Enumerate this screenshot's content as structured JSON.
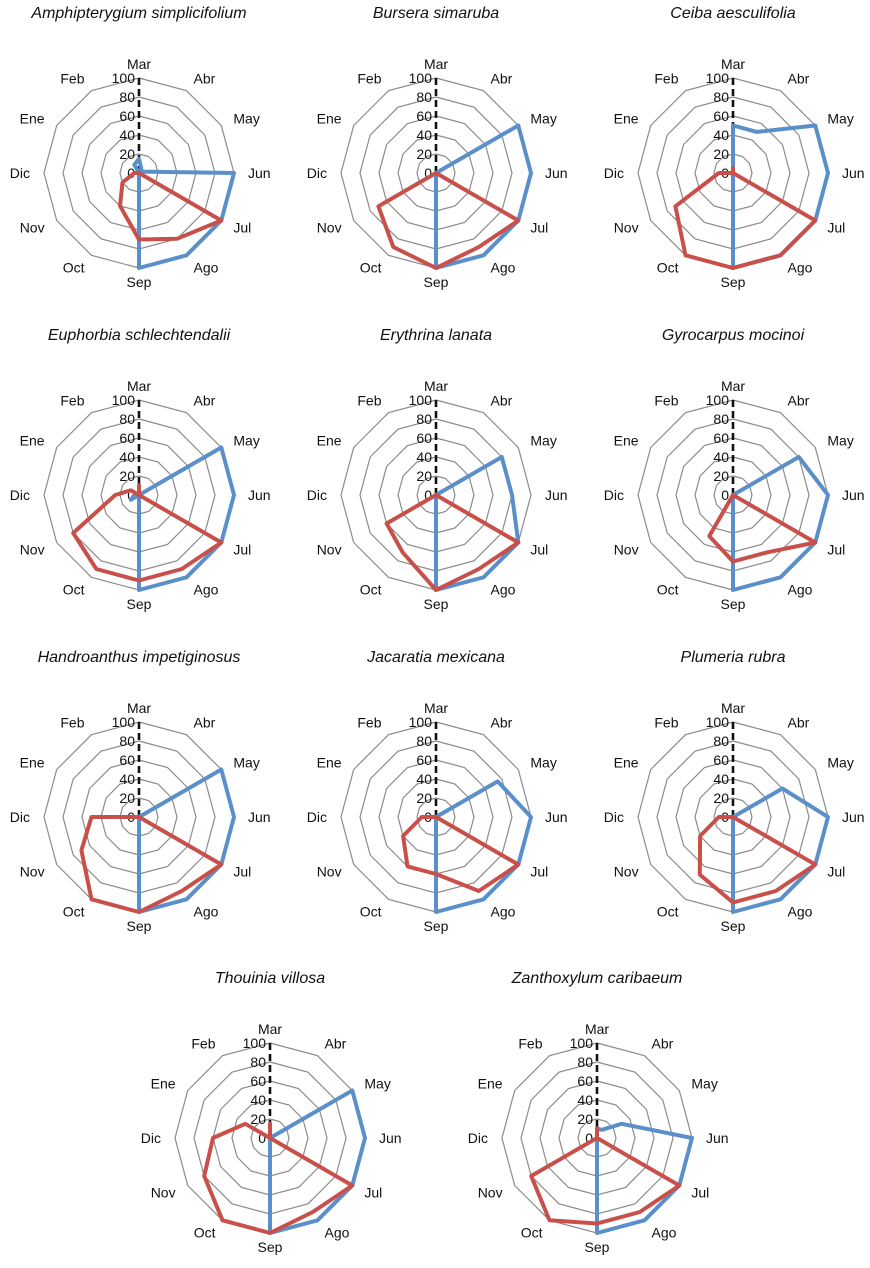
{
  "colors": {
    "series_a": "#5b8fc9",
    "series_b": "#c9504a",
    "grid": "#8a8a8a"
  },
  "chart_data": [
    {
      "type": "radar",
      "title": "Amphipterygium simplicifolium",
      "categories": [
        "Mar",
        "Abr",
        "May",
        "Jun",
        "Jul",
        "Ago",
        "Sep",
        "Oct",
        "Nov",
        "Dic",
        "Ene",
        "Feb"
      ],
      "ticks": [
        "0",
        "20",
        "40",
        "60",
        "80",
        "100"
      ],
      "rlim": [
        0,
        100
      ],
      "series": [
        {
          "color": "#5b8fc9",
          "values": [
            15,
            5,
            3,
            100,
            100,
            100,
            100,
            0,
            0,
            0,
            0,
            10
          ]
        },
        {
          "color": "#c9504a",
          "values": [
            0,
            0,
            0,
            0,
            100,
            80,
            70,
            40,
            20,
            5,
            0,
            0
          ]
        }
      ]
    },
    {
      "type": "radar",
      "title": "Bursera simaruba",
      "categories": [
        "Mar",
        "Abr",
        "May",
        "Jun",
        "Jul",
        "Ago",
        "Sep",
        "Oct",
        "Nov",
        "Dic",
        "Ene",
        "Feb"
      ],
      "ticks": [
        "0",
        "20",
        "40",
        "60",
        "80",
        "100"
      ],
      "rlim": [
        0,
        100
      ],
      "series": [
        {
          "color": "#5b8fc9",
          "values": [
            0,
            0,
            100,
            100,
            100,
            100,
            100,
            0,
            0,
            0,
            0,
            0
          ]
        },
        {
          "color": "#c9504a",
          "values": [
            0,
            0,
            0,
            0,
            100,
            90,
            100,
            90,
            70,
            0,
            0,
            0
          ]
        }
      ]
    },
    {
      "type": "radar",
      "title": "Ceiba aesculifolia",
      "categories": [
        "Mar",
        "Abr",
        "May",
        "Jun",
        "Jul",
        "Ago",
        "Sep",
        "Oct",
        "Nov",
        "Dic",
        "Ene",
        "Feb"
      ],
      "ticks": [
        "0",
        "20",
        "40",
        "60",
        "80",
        "100"
      ],
      "rlim": [
        0,
        100
      ],
      "series": [
        {
          "color": "#5b8fc9",
          "values": [
            50,
            50,
            100,
            100,
            100,
            100,
            100,
            0,
            0,
            0,
            0,
            0
          ]
        },
        {
          "color": "#c9504a",
          "values": [
            5,
            0,
            0,
            0,
            100,
            100,
            100,
            100,
            70,
            15,
            0,
            0
          ]
        }
      ]
    },
    {
      "type": "radar",
      "title": "Euphorbia schlechtendalii",
      "categories": [
        "Mar",
        "Abr",
        "May",
        "Jun",
        "Jul",
        "Ago",
        "Sep",
        "Oct",
        "Nov",
        "Dic",
        "Ene",
        "Feb"
      ],
      "ticks": [
        "0",
        "20",
        "40",
        "60",
        "80",
        "100"
      ],
      "rlim": [
        0,
        100
      ],
      "series": [
        {
          "color": "#5b8fc9",
          "values": [
            10,
            0,
            100,
            100,
            100,
            100,
            100,
            0,
            10,
            5,
            0,
            0
          ]
        },
        {
          "color": "#c9504a",
          "values": [
            10,
            0,
            0,
            0,
            100,
            90,
            90,
            90,
            80,
            25,
            10,
            0
          ]
        }
      ]
    },
    {
      "type": "radar",
      "title": "Erythrina lanata",
      "categories": [
        "Mar",
        "Abr",
        "May",
        "Jun",
        "Jul",
        "Ago",
        "Sep",
        "Oct",
        "Nov",
        "Dic",
        "Ene",
        "Feb"
      ],
      "ticks": [
        "0",
        "20",
        "40",
        "60",
        "80",
        "100"
      ],
      "rlim": [
        0,
        100
      ],
      "series": [
        {
          "color": "#5b8fc9",
          "values": [
            0,
            0,
            80,
            80,
            100,
            100,
            100,
            0,
            0,
            0,
            0,
            0
          ]
        },
        {
          "color": "#c9504a",
          "values": [
            0,
            0,
            0,
            0,
            100,
            90,
            100,
            70,
            60,
            0,
            0,
            0
          ]
        }
      ]
    },
    {
      "type": "radar",
      "title": "Gyrocarpus mocinoi",
      "categories": [
        "Mar",
        "Abr",
        "May",
        "Jun",
        "Jul",
        "Ago",
        "Sep",
        "Oct",
        "Nov",
        "Dic",
        "Ene",
        "Feb"
      ],
      "ticks": [
        "0",
        "20",
        "40",
        "60",
        "80",
        "100"
      ],
      "rlim": [
        0,
        100
      ],
      "series": [
        {
          "color": "#5b8fc9",
          "values": [
            0,
            0,
            80,
            100,
            100,
            100,
            100,
            0,
            0,
            0,
            0,
            0
          ]
        },
        {
          "color": "#c9504a",
          "values": [
            0,
            0,
            0,
            0,
            100,
            70,
            70,
            50,
            0,
            0,
            0,
            0
          ]
        }
      ]
    },
    {
      "type": "radar",
      "title": "Handroanthus impetiginosus",
      "categories": [
        "Mar",
        "Abr",
        "May",
        "Jun",
        "Jul",
        "Ago",
        "Sep",
        "Oct",
        "Nov",
        "Dic",
        "Ene",
        "Feb"
      ],
      "ticks": [
        "0",
        "20",
        "40",
        "60",
        "80",
        "100"
      ],
      "rlim": [
        0,
        100
      ],
      "series": [
        {
          "color": "#5b8fc9",
          "values": [
            0,
            0,
            100,
            100,
            100,
            100,
            100,
            0,
            0,
            0,
            0,
            0
          ]
        },
        {
          "color": "#c9504a",
          "values": [
            0,
            0,
            0,
            0,
            100,
            90,
            100,
            100,
            70,
            50,
            0,
            0
          ]
        }
      ]
    },
    {
      "type": "radar",
      "title": "Jacaratia mexicana",
      "categories": [
        "Mar",
        "Abr",
        "May",
        "Jun",
        "Jul",
        "Ago",
        "Sep",
        "Oct",
        "Nov",
        "Dic",
        "Ene",
        "Feb"
      ],
      "ticks": [
        "0",
        "20",
        "40",
        "60",
        "80",
        "100"
      ],
      "rlim": [
        0,
        100
      ],
      "series": [
        {
          "color": "#5b8fc9",
          "values": [
            0,
            0,
            75,
            100,
            100,
            100,
            100,
            0,
            0,
            0,
            0,
            0
          ]
        },
        {
          "color": "#c9504a",
          "values": [
            0,
            0,
            0,
            0,
            100,
            90,
            60,
            60,
            40,
            15,
            0,
            0
          ]
        }
      ]
    },
    {
      "type": "radar",
      "title": "Plumeria rubra",
      "categories": [
        "Mar",
        "Abr",
        "May",
        "Jun",
        "Jul",
        "Ago",
        "Sep",
        "Oct",
        "Nov",
        "Dic",
        "Ene",
        "Feb"
      ],
      "ticks": [
        "0",
        "20",
        "40",
        "60",
        "80",
        "100"
      ],
      "rlim": [
        0,
        100
      ],
      "series": [
        {
          "color": "#5b8fc9",
          "values": [
            0,
            0,
            60,
            100,
            100,
            100,
            100,
            0,
            0,
            0,
            0,
            0
          ]
        },
        {
          "color": "#c9504a",
          "values": [
            0,
            0,
            0,
            0,
            100,
            90,
            90,
            70,
            40,
            15,
            0,
            0
          ]
        }
      ]
    },
    {
      "type": "radar",
      "title": "Thouinia villosa",
      "categories": [
        "Mar",
        "Abr",
        "May",
        "Jun",
        "Jul",
        "Ago",
        "Sep",
        "Oct",
        "Nov",
        "Dic",
        "Ene",
        "Feb"
      ],
      "ticks": [
        "0",
        "20",
        "40",
        "60",
        "80",
        "100"
      ],
      "rlim": [
        0,
        100
      ],
      "series": [
        {
          "color": "#5b8fc9",
          "values": [
            15,
            0,
            100,
            100,
            100,
            100,
            100,
            0,
            0,
            0,
            0,
            0
          ]
        },
        {
          "color": "#c9504a",
          "values": [
            15,
            0,
            0,
            0,
            100,
            90,
            100,
            100,
            80,
            60,
            30,
            0
          ]
        }
      ]
    },
    {
      "type": "radar",
      "title": "Zanthoxylum caribaeum",
      "categories": [
        "Mar",
        "Abr",
        "May",
        "Jun",
        "Jul",
        "Ago",
        "Sep",
        "Oct",
        "Nov",
        "Dic",
        "Ene",
        "Feb"
      ],
      "ticks": [
        "0",
        "20",
        "40",
        "60",
        "80",
        "100"
      ],
      "rlim": [
        0,
        100
      ],
      "series": [
        {
          "color": "#5b8fc9",
          "values": [
            10,
            10,
            30,
            100,
            100,
            100,
            100,
            0,
            0,
            0,
            0,
            0
          ]
        },
        {
          "color": "#c9504a",
          "values": [
            10,
            0,
            0,
            0,
            100,
            90,
            90,
            100,
            80,
            0,
            0,
            0
          ]
        }
      ]
    }
  ]
}
